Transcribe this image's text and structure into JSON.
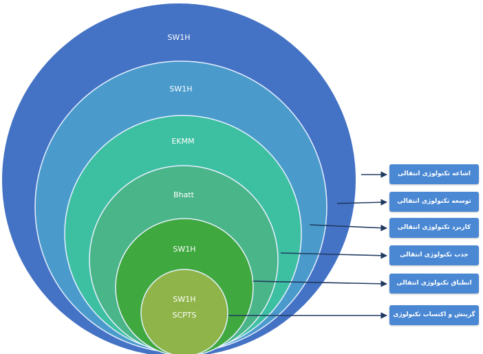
{
  "colors": {
    "ring_1": "#4472c4",
    "ring_2": "#4a9bcc",
    "ring_3": "#3dbfa2",
    "ring_4": "#4ab589",
    "ring_5": "#3fa83f",
    "ring_6": "#8fb54a",
    "ring_outline": "#e8f0ff",
    "arrow": "#1f3a60",
    "box": "#4a88d4"
  },
  "rings": [
    {
      "label_lines": [
        "SW1H"
      ]
    },
    {
      "label_lines": [
        "SW1H"
      ]
    },
    {
      "label_lines": [
        "EKMM"
      ]
    },
    {
      "label_lines": [
        "Bhatt"
      ]
    },
    {
      "label_lines": [
        "SW1H"
      ]
    },
    {
      "label_lines": [
        "SW1H",
        "SCPTS"
      ]
    }
  ],
  "side_boxes": [
    {
      "label": "اشاعه تکنولوژی انتقالی"
    },
    {
      "label": "توسعه تکنولوژی انتقالی"
    },
    {
      "label": "کاربرد تکنولوژی انتقالی"
    },
    {
      "label": "جذب تکنولوژی انتقالی"
    },
    {
      "label": "انطباق تکنولوژی انتقالی"
    },
    {
      "label": "گزینش و اکتساب تکنولوژی"
    }
  ]
}
